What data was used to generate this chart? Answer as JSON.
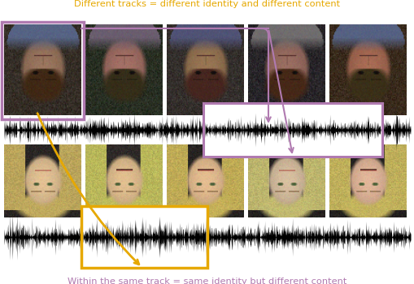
{
  "top_text": "Within the same track = same identity but different content",
  "bottom_text": "Different tracks = different identity and different content",
  "top_text_color": "#b07ab0",
  "bottom_text_color": "#e6a800",
  "purple_box_color": "#b07ab0",
  "orange_box_color": "#e6a800",
  "bg_color": "#ffffff",
  "fig_width": 5.1,
  "fig_height": 3.5,
  "dpi": 100
}
